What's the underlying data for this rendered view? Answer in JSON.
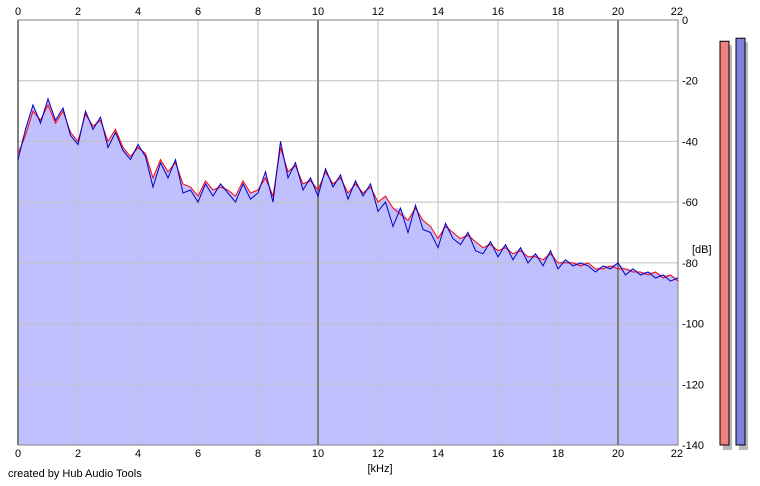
{
  "credit": "created by Hub Audio Tools",
  "colors": {
    "background": "#ffffff",
    "plot_fill": "#c0c0ff",
    "grid_minor": "#c0c0c0",
    "grid_major": "#808080",
    "left_channel": "#ff0000",
    "right_channel": "#0000c0",
    "left_meter": "#f08080",
    "right_meter": "#8080e0",
    "meter_shadow": "#b8b8b8"
  },
  "meters": [
    {
      "name": "left-level-meter",
      "level_db": -7
    },
    {
      "name": "right-level-meter",
      "level_db": -6
    }
  ],
  "chart_data": {
    "type": "line",
    "xlabel": "[kHz]",
    "ylabel": "[dB]",
    "xlim": [
      0,
      22
    ],
    "ylim": [
      -140,
      0
    ],
    "x_ticks": [
      0,
      2,
      4,
      6,
      8,
      10,
      12,
      14,
      16,
      18,
      20,
      22
    ],
    "y_ticks": [
      0,
      -20,
      -40,
      -60,
      -80,
      -100,
      -120,
      -140
    ],
    "grid": true,
    "x": [
      0.0,
      0.25,
      0.5,
      0.75,
      1.0,
      1.25,
      1.5,
      1.75,
      2.0,
      2.25,
      2.5,
      2.75,
      3.0,
      3.25,
      3.5,
      3.75,
      4.0,
      4.25,
      4.5,
      4.75,
      5.0,
      5.25,
      5.5,
      5.75,
      6.0,
      6.25,
      6.5,
      6.75,
      7.0,
      7.25,
      7.5,
      7.75,
      8.0,
      8.25,
      8.5,
      8.75,
      9.0,
      9.25,
      9.5,
      9.75,
      10.0,
      10.25,
      10.5,
      10.75,
      11.0,
      11.25,
      11.5,
      11.75,
      12.0,
      12.25,
      12.5,
      12.75,
      13.0,
      13.25,
      13.5,
      13.75,
      14.0,
      14.25,
      14.5,
      14.75,
      15.0,
      15.25,
      15.5,
      15.75,
      16.0,
      16.25,
      16.5,
      16.75,
      17.0,
      17.25,
      17.5,
      17.75,
      18.0,
      18.25,
      18.5,
      18.75,
      19.0,
      19.25,
      19.5,
      19.75,
      20.0,
      20.25,
      20.5,
      20.75,
      21.0,
      21.25,
      21.5,
      21.75,
      22.0
    ],
    "series": [
      {
        "channel": "left",
        "color": "#ff0000",
        "values": [
          -44,
          -38,
          -30,
          -33,
          -28,
          -34,
          -30,
          -37,
          -40,
          -31,
          -35,
          -33,
          -40,
          -36,
          -42,
          -45,
          -42,
          -44,
          -52,
          -46,
          -50,
          -47,
          -54,
          -55,
          -58,
          -53,
          -56,
          -55,
          -56,
          -58,
          -53,
          -57,
          -56,
          -52,
          -58,
          -42,
          -50,
          -48,
          -54,
          -53,
          -56,
          -50,
          -54,
          -52,
          -57,
          -54,
          -57,
          -55,
          -60,
          -58,
          -62,
          -64,
          -66,
          -62,
          -66,
          -68,
          -72,
          -68,
          -70,
          -72,
          -71,
          -73,
          -75,
          -74,
          -76,
          -75,
          -77,
          -76,
          -78,
          -78,
          -79,
          -77,
          -80,
          -80,
          -80,
          -81,
          -80,
          -82,
          -82,
          -81,
          -82,
          -82,
          -83,
          -83,
          -84,
          -83,
          -85,
          -84,
          -86
        ]
      },
      {
        "channel": "right",
        "color": "#0000c0",
        "values": [
          -46,
          -36,
          -28,
          -34,
          -26,
          -33,
          -29,
          -38,
          -41,
          -30,
          -36,
          -32,
          -42,
          -37,
          -43,
          -46,
          -41,
          -45,
          -55,
          -47,
          -52,
          -46,
          -57,
          -56,
          -60,
          -54,
          -58,
          -54,
          -57,
          -60,
          -54,
          -59,
          -57,
          -50,
          -60,
          -40,
          -52,
          -47,
          -56,
          -52,
          -58,
          -49,
          -55,
          -51,
          -59,
          -53,
          -58,
          -54,
          -63,
          -60,
          -68,
          -62,
          -70,
          -61,
          -69,
          -70,
          -75,
          -67,
          -72,
          -74,
          -70,
          -76,
          -77,
          -73,
          -78,
          -74,
          -79,
          -75,
          -80,
          -77,
          -81,
          -76,
          -82,
          -79,
          -81,
          -80,
          -81,
          -83,
          -81,
          -82,
          -80,
          -84,
          -82,
          -84,
          -83,
          -85,
          -84,
          -86,
          -85
        ]
      }
    ]
  }
}
